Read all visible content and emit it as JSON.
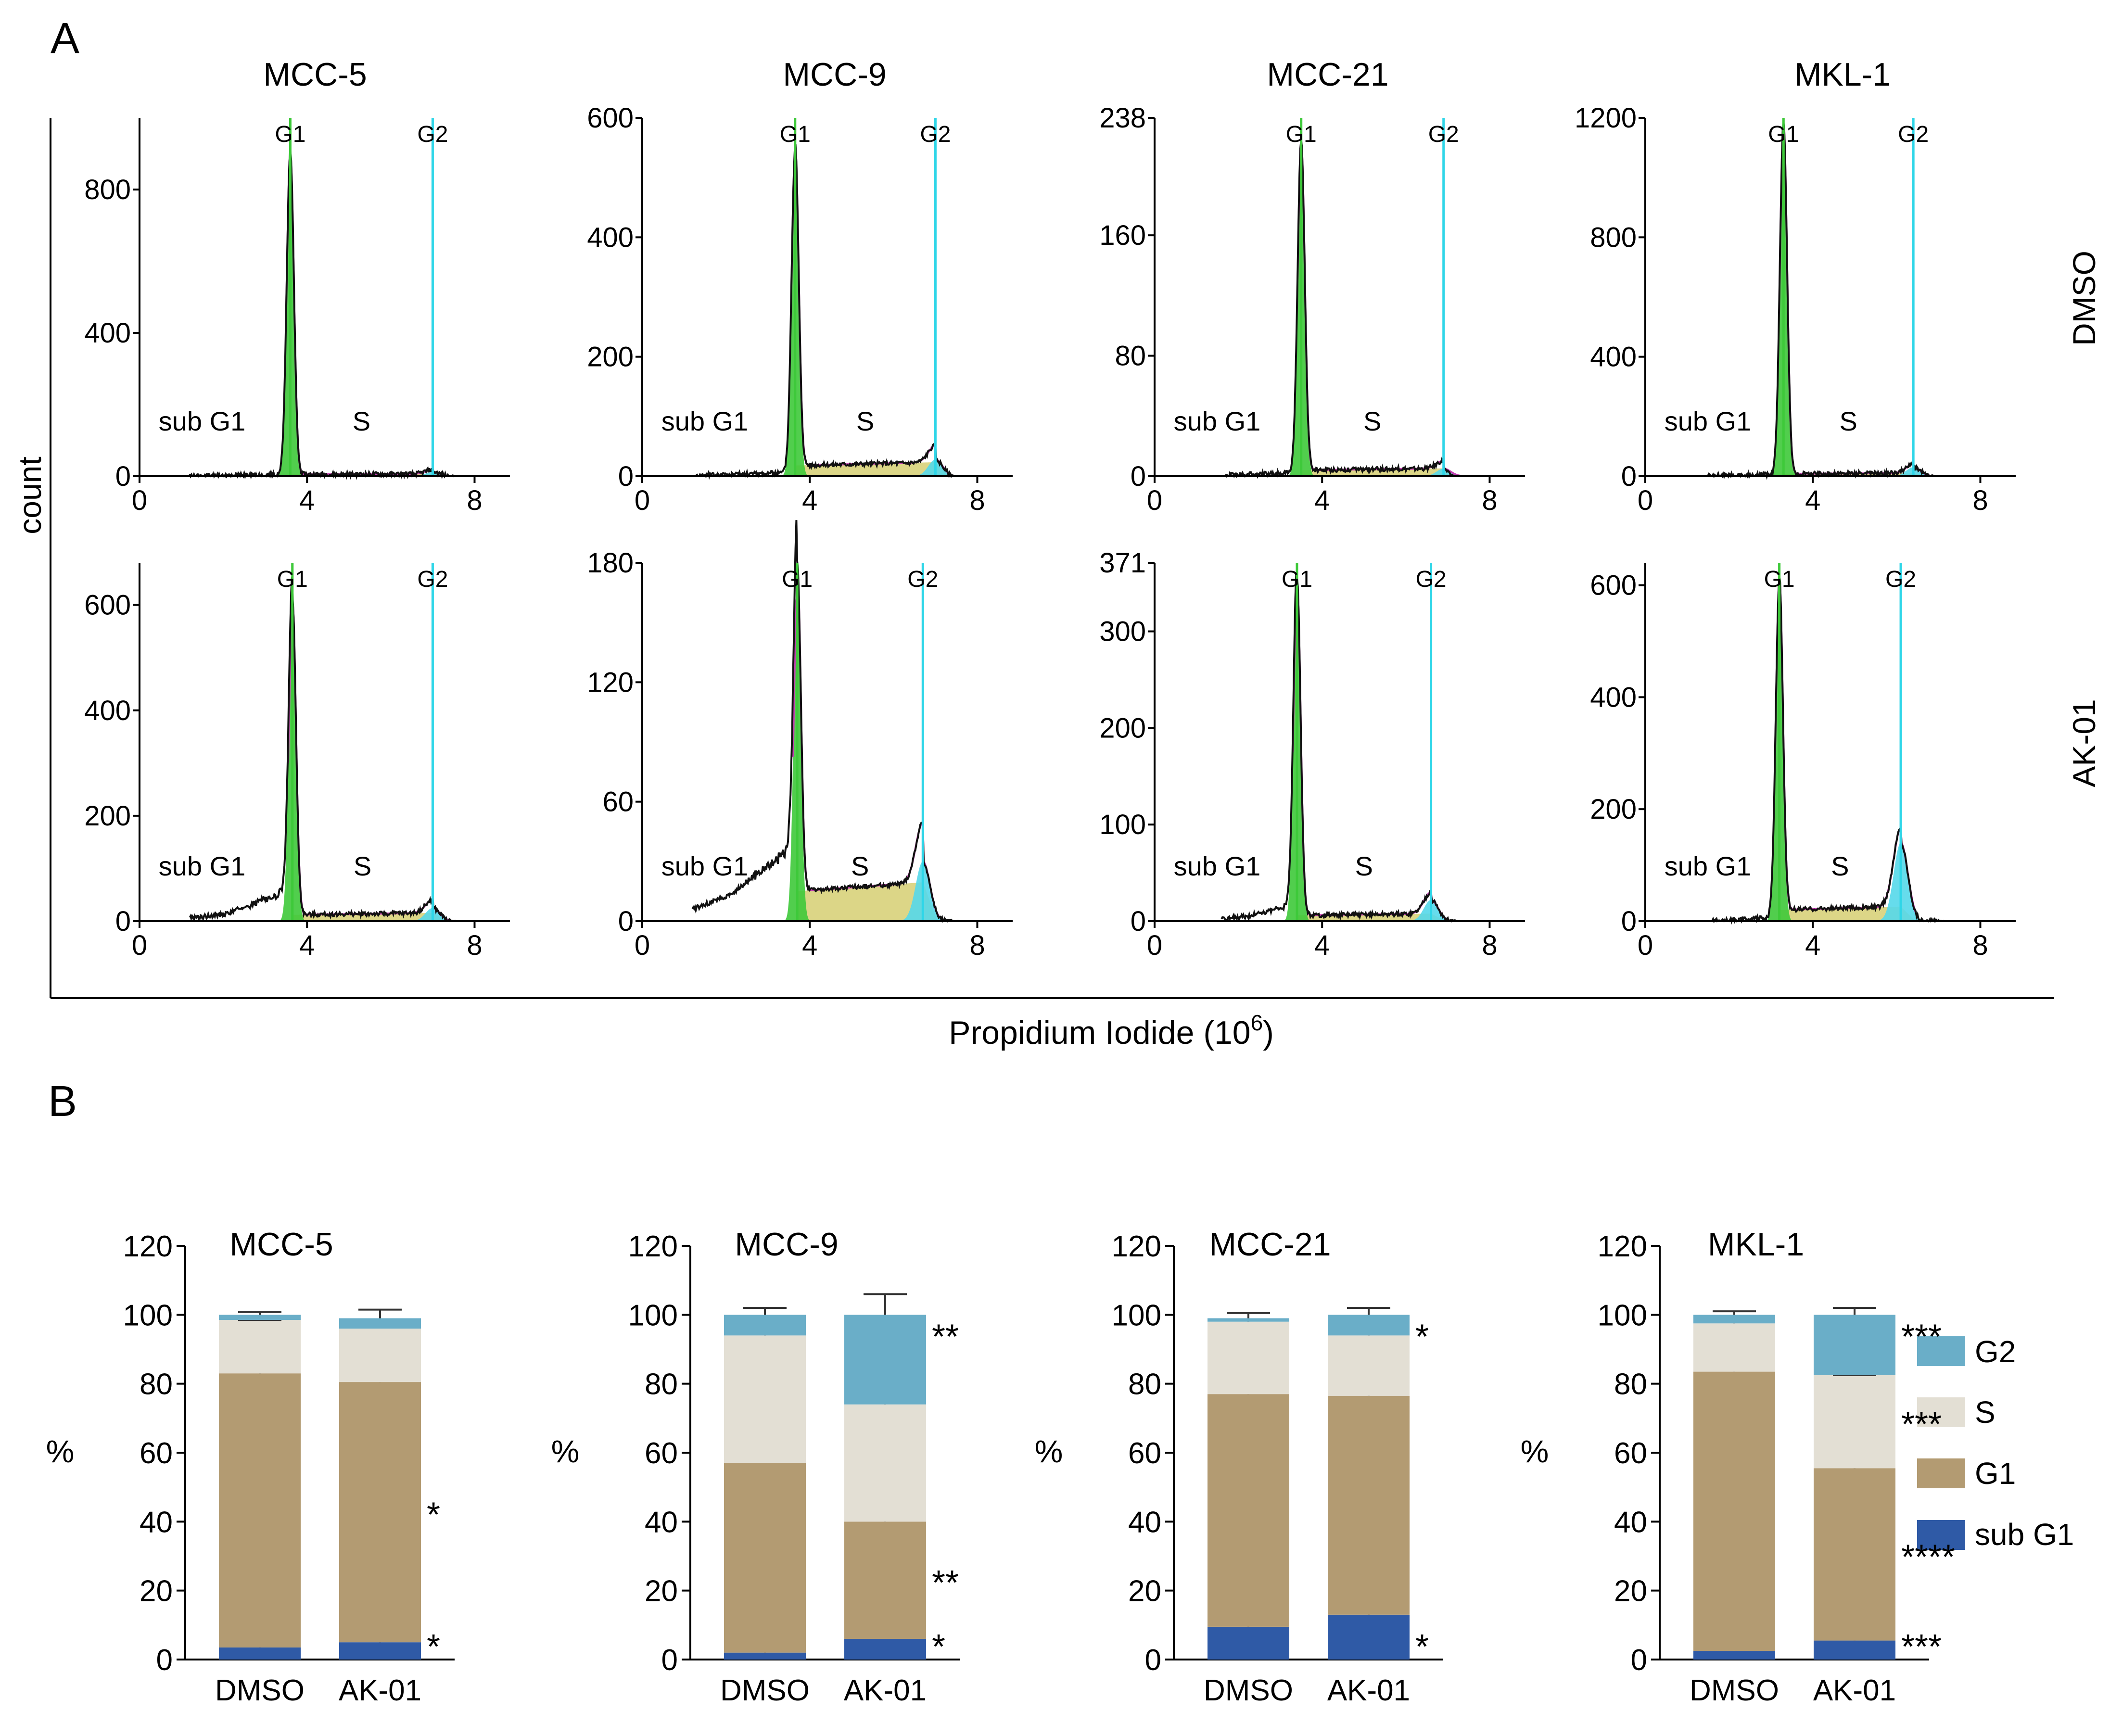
{
  "panel_a": {
    "letter": "A",
    "column_titles": [
      "MCC-5",
      "MCC-9",
      "MCC-21",
      "MKL-1"
    ],
    "row_labels": [
      "DMSO",
      "AK-01"
    ],
    "ylabel": "count",
    "xlabel": "Propidium Iodide (10",
    "xlabel_sup": "6",
    "xlabel_close": ")",
    "peak_labels": {
      "g1": "G1",
      "g2": "G2"
    },
    "region_labels": {
      "subg1": "sub G1",
      "s": "S"
    }
  },
  "panel_b": {
    "letter": "B",
    "percent_label": "%",
    "legend": [
      "G2",
      "S",
      "G1",
      "sub G1"
    ]
  },
  "colors": {
    "g1_fill": "#3ec93a",
    "s_fill": "#d8d27a",
    "g2_fill": "#55d8ea",
    "marker_g1": "#3ec93a",
    "marker_g2": "#2fd6e8",
    "trace": "#111111",
    "fit": "#c33fb2",
    "bar_g2": "#6aaec8",
    "bar_s": "#e3dfd4",
    "bar_g1": "#b39b72",
    "bar_subg1": "#2f5aa6"
  },
  "chart_data": [
    {
      "type": "area",
      "panel": "A",
      "title": "MCC-5",
      "condition": "DMSO",
      "xlabel": "Propidium Iodide (10^6)",
      "ylabel": "count",
      "xlim": [
        0,
        8.5
      ],
      "ylim": [
        0,
        1000
      ],
      "x_ticks": [
        "0",
        "4",
        "8"
      ],
      "y_ticks": [
        0,
        400,
        800
      ],
      "y_tick_labels": [
        "0",
        "400",
        "800"
      ],
      "g1_x": 3.6,
      "g2_x": 7.0,
      "g1_peak": 900,
      "g2_peak": 12,
      "s_level": 5,
      "subg1_level": 4,
      "x_start": 1.2,
      "x_end": 7.6,
      "sub_bump": 0
    },
    {
      "type": "area",
      "panel": "A",
      "title": "MCC-9",
      "condition": "DMSO",
      "xlabel": "Propidium Iodide (10^6)",
      "ylabel": "count",
      "xlim": [
        0,
        8.5
      ],
      "ylim": [
        0,
        600
      ],
      "x_ticks": [
        "0",
        "4",
        "8"
      ],
      "y_ticks": [
        0,
        200,
        400,
        600
      ],
      "y_tick_labels": [
        "0",
        "200",
        "400",
        "600"
      ],
      "g1_x": 3.65,
      "g2_x": 7.0,
      "g1_peak": 540,
      "g2_peak": 28,
      "s_level": 18,
      "subg1_level": 5,
      "x_start": 1.3,
      "x_end": 7.6,
      "sub_bump": 0
    },
    {
      "type": "area",
      "panel": "A",
      "title": "MCC-21",
      "condition": "DMSO",
      "xlabel": "Propidium Iodide (10^6)",
      "ylabel": "count",
      "xlim": [
        0,
        8.5
      ],
      "ylim": [
        0,
        238
      ],
      "x_ticks": [
        "0",
        "4",
        "8"
      ],
      "y_ticks": [
        0,
        80,
        160,
        238
      ],
      "y_tick_labels": [
        "0",
        "80",
        "160",
        "238"
      ],
      "g1_x": 3.5,
      "g2_x": 6.9,
      "g1_peak": 220,
      "g2_peak": 5,
      "s_level": 4,
      "subg1_level": 2,
      "x_start": 1.7,
      "x_end": 7.2,
      "sub_bump": 0
    },
    {
      "type": "area",
      "panel": "A",
      "title": "MKL-1",
      "condition": "DMSO",
      "xlabel": "Propidium Iodide (10^6)",
      "ylabel": "count",
      "xlim": [
        0,
        8.5
      ],
      "ylim": [
        0,
        1200
      ],
      "x_ticks": [
        "0",
        "4",
        "8"
      ],
      "y_ticks": [
        0,
        400,
        800,
        1200
      ],
      "y_tick_labels": [
        "0",
        "400",
        "800",
        "1200"
      ],
      "g1_x": 3.3,
      "g2_x": 6.4,
      "g1_peak": 1180,
      "g2_peak": 30,
      "s_level": 8,
      "subg1_level": 5,
      "x_start": 1.5,
      "x_end": 7.0,
      "sub_bump": 0
    },
    {
      "type": "area",
      "panel": "A",
      "title": "MCC-5",
      "condition": "AK-01",
      "xlabel": "Propidium Iodide (10^6)",
      "ylabel": "count",
      "xlim": [
        0,
        8.5
      ],
      "ylim": [
        0,
        680
      ],
      "x_ticks": [
        "0",
        "4",
        "8"
      ],
      "y_ticks": [
        0,
        200,
        400,
        600
      ],
      "y_tick_labels": [
        "0",
        "200",
        "400",
        "600"
      ],
      "g1_x": 3.65,
      "g2_x": 7.0,
      "g1_peak": 600,
      "g2_peak": 25,
      "s_level": 12,
      "subg1_level": 20,
      "x_start": 1.2,
      "x_end": 7.6,
      "sub_bump": 70
    },
    {
      "type": "area",
      "panel": "A",
      "title": "MCC-9",
      "condition": "AK-01",
      "xlabel": "Propidium Iodide (10^6)",
      "ylabel": "count",
      "xlim": [
        0,
        8.5
      ],
      "ylim": [
        0,
        180
      ],
      "x_ticks": [
        "0",
        "4",
        "8"
      ],
      "y_ticks": [
        0,
        60,
        120,
        180
      ],
      "y_tick_labels": [
        "0",
        "60",
        "120",
        "180"
      ],
      "g1_x": 3.7,
      "g2_x": 6.7,
      "g1_peak": 165,
      "g2_peak": 30,
      "s_level": 15,
      "subg1_level": 20,
      "x_start": 1.2,
      "x_end": 7.6,
      "sub_bump": 25
    },
    {
      "type": "area",
      "panel": "A",
      "title": "MCC-21",
      "condition": "AK-01",
      "xlabel": "Propidium Iodide (10^6)",
      "ylabel": "count",
      "xlim": [
        0,
        8.5
      ],
      "ylim": [
        0,
        371
      ],
      "x_ticks": [
        "0",
        "4",
        "8"
      ],
      "y_ticks": [
        0,
        100,
        200,
        300,
        371
      ],
      "y_tick_labels": [
        "0",
        "100",
        "200",
        "300",
        "371"
      ],
      "g1_x": 3.4,
      "g2_x": 6.6,
      "g1_peak": 350,
      "g2_peak": 22,
      "s_level": 6,
      "subg1_level": 8,
      "x_start": 1.6,
      "x_end": 7.3,
      "sub_bump": 15
    },
    {
      "type": "area",
      "panel": "A",
      "title": "MKL-1",
      "condition": "AK-01",
      "xlabel": "Propidium Iodide (10^6)",
      "ylabel": "count",
      "xlim": [
        0,
        8.5
      ],
      "ylim": [
        0,
        640
      ],
      "x_ticks": [
        "0",
        "4",
        "8"
      ],
      "y_ticks": [
        0,
        200,
        400,
        600
      ],
      "y_tick_labels": [
        "0",
        "200",
        "400",
        "600"
      ],
      "g1_x": 3.2,
      "g2_x": 6.1,
      "g1_peak": 600,
      "g2_peak": 140,
      "s_level": 20,
      "subg1_level": 5,
      "x_start": 1.6,
      "x_end": 7.2,
      "sub_bump": 0
    },
    {
      "type": "bar",
      "panel": "B",
      "title": "MCC-5",
      "categories": [
        "DMSO",
        "AK-01"
      ],
      "ylim": [
        0,
        120
      ],
      "y_ticks": [
        0,
        20,
        40,
        60,
        80,
        100,
        120
      ],
      "y_tick_labels": [
        "0",
        "20",
        "40",
        "60",
        "80",
        "100",
        "120"
      ],
      "ylabel": "%",
      "series": [
        {
          "name": "sub G1",
          "values": [
            3.5,
            5.0
          ]
        },
        {
          "name": "G1",
          "values": [
            79.5,
            75.5
          ]
        },
        {
          "name": "S",
          "values": [
            15.5,
            15.5
          ]
        },
        {
          "name": "G2",
          "values": [
            1.5,
            3.0
          ]
        }
      ],
      "error_tops": [
        [
          4.2,
          5.5
        ],
        [
          84,
          81.5
        ],
        [
          98.5,
          97
        ],
        [
          100.8,
          101.5
        ]
      ],
      "significance": {
        "sub G1": "*",
        "G1": "*",
        "S": "",
        "G2": ""
      }
    },
    {
      "type": "bar",
      "panel": "B",
      "title": "MCC-9",
      "categories": [
        "DMSO",
        "AK-01"
      ],
      "ylim": [
        0,
        120
      ],
      "y_ticks": [
        0,
        20,
        40,
        60,
        80,
        100,
        120
      ],
      "y_tick_labels": [
        "0",
        "20",
        "40",
        "60",
        "80",
        "100",
        "120"
      ],
      "ylabel": "%",
      "series": [
        {
          "name": "sub G1",
          "values": [
            2.0,
            6.0
          ]
        },
        {
          "name": "G1",
          "values": [
            55.0,
            34.0
          ]
        },
        {
          "name": "S",
          "values": [
            37.0,
            34.0
          ]
        },
        {
          "name": "G2",
          "values": [
            6.0,
            26.0
          ]
        }
      ],
      "error_tops": [
        [
          2.5,
          8.0
        ],
        [
          58.5,
          44.0
        ],
        [
          97.0,
          76.0
        ],
        [
          102.0,
          106.0
        ]
      ],
      "significance": {
        "sub G1": "*",
        "G1": "**",
        "S": "",
        "G2": "**"
      }
    },
    {
      "type": "bar",
      "panel": "B",
      "title": "MCC-21",
      "categories": [
        "DMSO",
        "AK-01"
      ],
      "ylim": [
        0,
        120
      ],
      "y_ticks": [
        0,
        20,
        40,
        60,
        80,
        100,
        120
      ],
      "y_tick_labels": [
        "0",
        "20",
        "40",
        "60",
        "80",
        "100",
        "120"
      ],
      "ylabel": "%",
      "series": [
        {
          "name": "sub G1",
          "values": [
            9.5,
            13.0
          ]
        },
        {
          "name": "G1",
          "values": [
            67.5,
            63.5
          ]
        },
        {
          "name": "S",
          "values": [
            21.0,
            17.5
          ]
        },
        {
          "name": "G2",
          "values": [
            1.0,
            6.0
          ]
        }
      ],
      "error_tops": [
        [
          10.5,
          14.5
        ],
        [
          79.0,
          80.5
        ],
        [
          98.5,
          96.0
        ],
        [
          100.5,
          102.0
        ]
      ],
      "significance": {
        "sub G1": "*",
        "G1": "",
        "S": "",
        "G2": "*"
      }
    },
    {
      "type": "bar",
      "panel": "B",
      "title": "MKL-1",
      "categories": [
        "DMSO",
        "AK-01"
      ],
      "ylim": [
        0,
        120
      ],
      "y_ticks": [
        0,
        20,
        40,
        60,
        80,
        100,
        120
      ],
      "y_tick_labels": [
        "0",
        "20",
        "40",
        "60",
        "80",
        "100",
        "120"
      ],
      "ylabel": "%",
      "series": [
        {
          "name": "sub G1",
          "values": [
            2.5,
            5.5
          ]
        },
        {
          "name": "G1",
          "values": [
            81.0,
            50.0
          ]
        },
        {
          "name": "S",
          "values": [
            14.0,
            27.0
          ]
        },
        {
          "name": "G2",
          "values": [
            2.5,
            17.5
          ]
        }
      ],
      "error_tops": [
        [
          3.0,
          6.0
        ],
        [
          84.5,
          57.0
        ],
        [
          98.0,
          82.5
        ],
        [
          101.0,
          102.0
        ]
      ],
      "significance": {
        "sub G1": "***",
        "G1": "****",
        "S": "***",
        "G2": "***"
      }
    }
  ]
}
